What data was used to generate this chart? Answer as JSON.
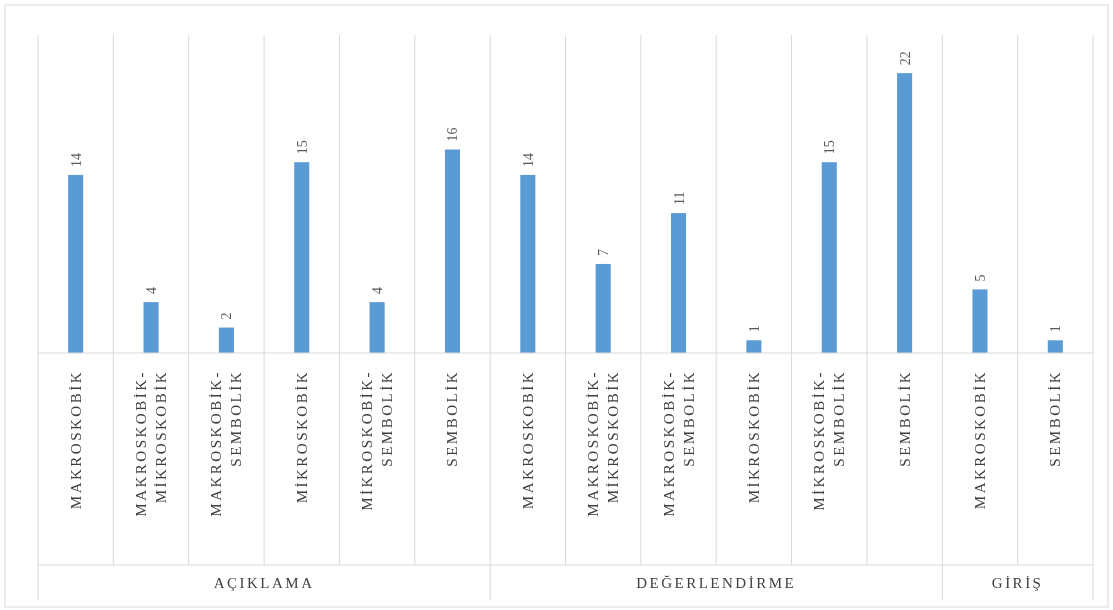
{
  "chart_data": [
    {
      "type": "bar",
      "xlabel": "AÇIKLAMA",
      "categories": [
        "MAKROSKOBİK",
        "MAKROSKOBİK-MİKROSKOBİK",
        "MAKROSKOBİK-SEMBOLİK",
        "MİKROSKOBİK",
        "MİKROSKOBİK-SEMBOLİK",
        "SEMBOLİK"
      ],
      "values": [
        14,
        4,
        2,
        15,
        4,
        16
      ],
      "color": "#5b9bd5",
      "ylim": [
        0,
        25
      ],
      "tick_labels": "x",
      "data_labels": true
    },
    {
      "type": "bar",
      "xlabel": "DEĞERLENDİRME",
      "categories": [
        "MAKROSKOBİK",
        "MAKROSKOBİK-MİKROSKOBİK",
        "MAKROSKOBİK-SEMBOLİK",
        "MİKROSKOBİK",
        "MİKROSKOBİK-SEMBOLİK",
        "SEMBOLİK"
      ],
      "values": [
        14,
        7,
        11,
        1,
        15,
        22
      ],
      "color": "#5b9bd5",
      "ylim": [
        0,
        25
      ],
      "tick_labels": "x",
      "data_labels": true
    },
    {
      "type": "bar",
      "xlabel": "GİRİŞ",
      "categories": [
        "MAKROSKOBİK",
        "SEMBOLİK"
      ],
      "values": [
        5,
        1
      ],
      "color": "#5b9bd5",
      "ylim": [
        0,
        25
      ],
      "tick_labels": "x",
      "data_labels": true
    }
  ]
}
